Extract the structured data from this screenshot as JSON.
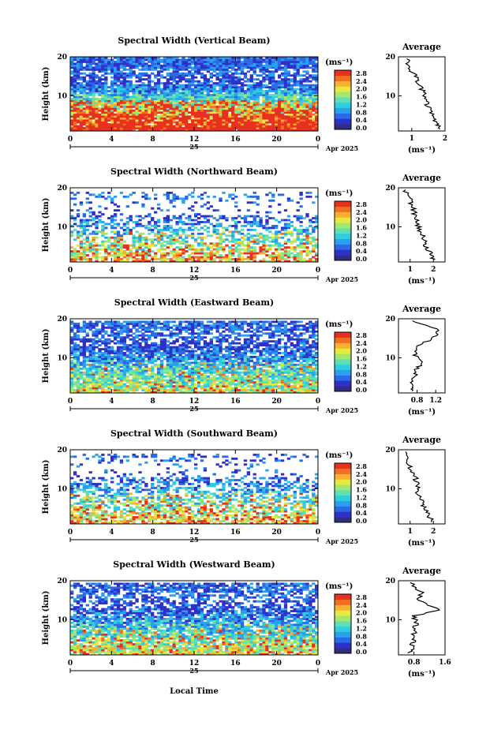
{
  "figure": {
    "x_axis_label": "Local Time",
    "day_label": "25",
    "month_year": "Apr 2025",
    "colorbar_unit": "(ms⁻¹)",
    "colorbar_ticks": [
      "2.8",
      "2.4",
      "2.0",
      "1.6",
      "1.2",
      "0.8",
      "0.4",
      "0.0"
    ],
    "colorscale": [
      "#2e2e7e",
      "#3030c8",
      "#2a6ae6",
      "#2aa0f0",
      "#30cde0",
      "#60e0b0",
      "#a0e870",
      "#e8e840",
      "#f8b030",
      "#f07020",
      "#e83020"
    ],
    "x_ticks": [
      "0",
      "4",
      "8",
      "12",
      "16",
      "20",
      "0"
    ],
    "y_ticks": [
      "20",
      "10"
    ],
    "height_label": "Height (km)",
    "avg_title": "Average",
    "avg_unit": "(ms⁻¹)"
  },
  "chart_data": [
    {
      "type": "heatmap",
      "title": "Spectral Width (Vertical Beam)",
      "xlabel": "",
      "ylabel": "Height (km)",
      "xlim": [
        0,
        24
      ],
      "ylim": [
        1,
        20
      ],
      "zlim": [
        0,
        3.0
      ],
      "colorbar_label": "(ms⁻¹)",
      "avg_profile": {
        "title": "Average",
        "xlim": [
          0.6,
          2.0
        ],
        "x_ticks": [
          "1",
          "2"
        ],
        "height_km": [
          1.5,
          3,
          5,
          7,
          9,
          11,
          13,
          15,
          17,
          19.5
        ],
        "value": [
          1.8,
          1.75,
          1.65,
          1.5,
          1.4,
          1.35,
          1.2,
          1.1,
          0.95,
          0.85
        ]
      }
    },
    {
      "type": "heatmap",
      "title": "Spectral Width (Northward Beam)",
      "xlabel": "",
      "ylabel": "Height (km)",
      "xlim": [
        0,
        24
      ],
      "ylim": [
        1,
        20
      ],
      "zlim": [
        0,
        3.0
      ],
      "colorbar_label": "(ms⁻¹)",
      "avg_profile": {
        "title": "Average",
        "xlim": [
          0.5,
          2.5
        ],
        "x_ticks": [
          "1",
          "2"
        ],
        "height_km": [
          1.5,
          3,
          5,
          7,
          9,
          11,
          13,
          15,
          17,
          19.5
        ],
        "value": [
          2.0,
          1.9,
          1.7,
          1.6,
          1.4,
          1.3,
          1.2,
          1.1,
          1.0,
          0.8
        ]
      }
    },
    {
      "type": "heatmap",
      "title": "Spectral Width (Eastward Beam)",
      "xlabel": "",
      "ylabel": "Height (km)",
      "xlim": [
        0,
        24
      ],
      "ylim": [
        1,
        20
      ],
      "zlim": [
        0,
        3.0
      ],
      "colorbar_label": "(ms⁻¹)",
      "avg_profile": {
        "title": "Average",
        "xlim": [
          0.4,
          1.4
        ],
        "x_ticks": [
          "0.8",
          "1.2"
        ],
        "height_km": [
          1.5,
          3,
          5,
          7,
          9,
          11,
          13,
          15,
          17,
          19.5
        ],
        "value": [
          0.65,
          0.7,
          0.75,
          0.8,
          0.9,
          0.75,
          0.85,
          1.1,
          1.3,
          0.7
        ]
      }
    },
    {
      "type": "heatmap",
      "title": "Spectral Width (Southward Beam)",
      "xlabel": "",
      "ylabel": "Height (km)",
      "xlim": [
        0,
        24
      ],
      "ylim": [
        1,
        20
      ],
      "zlim": [
        0,
        3.0
      ],
      "colorbar_label": "(ms⁻¹)",
      "avg_profile": {
        "title": "Average",
        "xlim": [
          0.5,
          2.5
        ],
        "x_ticks": [
          "1",
          "2"
        ],
        "height_km": [
          1.5,
          3,
          5,
          7,
          9,
          11,
          13,
          15,
          17,
          19.5
        ],
        "value": [
          2.0,
          1.8,
          1.6,
          1.5,
          1.3,
          1.35,
          1.2,
          1.0,
          0.9,
          0.8
        ]
      }
    },
    {
      "type": "heatmap",
      "title": "Spectral Width (Westward Beam)",
      "xlabel": "",
      "ylabel": "Height (km)",
      "xlim": [
        0,
        24
      ],
      "ylim": [
        1,
        20
      ],
      "zlim": [
        0,
        3.0
      ],
      "colorbar_label": "(ms⁻¹)",
      "avg_profile": {
        "title": "Average",
        "xlim": [
          0.4,
          1.6
        ],
        "x_ticks": [
          "0.8",
          "1.6"
        ],
        "height_km": [
          1.5,
          3,
          5,
          7,
          9,
          11,
          12.5,
          15,
          17,
          19.5
        ],
        "value": [
          0.7,
          0.75,
          0.8,
          0.8,
          0.85,
          0.8,
          1.45,
          0.9,
          1.0,
          0.7
        ]
      }
    }
  ]
}
